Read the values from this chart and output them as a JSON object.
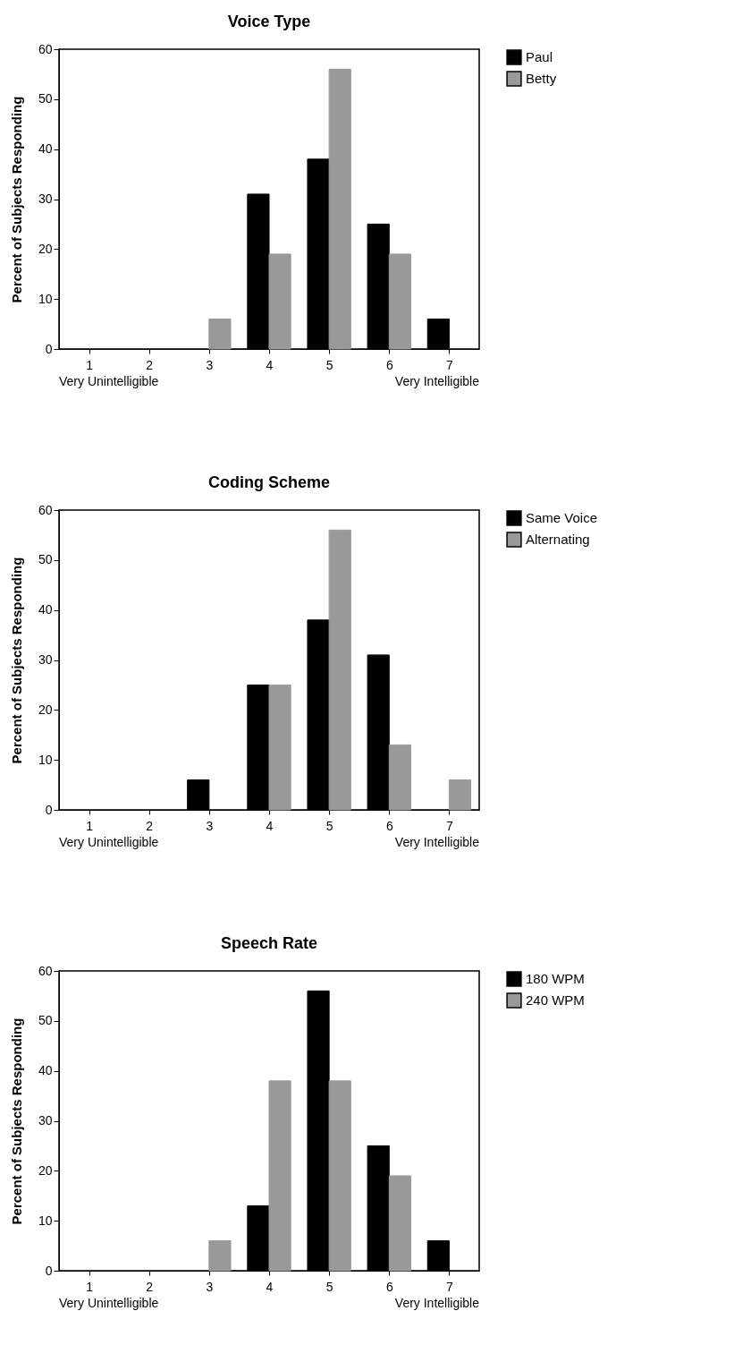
{
  "chart_data": [
    {
      "type": "bar",
      "title": "Voice Type",
      "ylabel": "Percent of Subjects Responding",
      "categories": [
        "1",
        "2",
        "3",
        "4",
        "5",
        "6",
        "7"
      ],
      "ylim": [
        0,
        60
      ],
      "yticks": [
        0,
        10,
        20,
        30,
        40,
        50,
        60
      ],
      "legend": "right",
      "annotations": [
        "Very Unintelligible",
        "Very Intelligible"
      ],
      "series": [
        {
          "name": "Paul",
          "color": "#000000",
          "values": [
            null,
            null,
            null,
            31,
            38,
            25,
            6
          ]
        },
        {
          "name": "Betty",
          "color": "#999999",
          "values": [
            null,
            null,
            6,
            19,
            56,
            19,
            null
          ]
        }
      ]
    },
    {
      "type": "bar",
      "title": "Coding Scheme",
      "ylabel": "Percent of Subjects Responding",
      "categories": [
        "1",
        "2",
        "3",
        "4",
        "5",
        "6",
        "7"
      ],
      "ylim": [
        0,
        60
      ],
      "yticks": [
        0,
        10,
        20,
        30,
        40,
        50,
        60
      ],
      "legend": "right",
      "annotations": [
        "Very Unintelligible",
        "Very Intelligible"
      ],
      "series": [
        {
          "name": "Same Voice",
          "color": "#000000",
          "values": [
            null,
            null,
            6,
            25,
            38,
            31,
            null
          ]
        },
        {
          "name": "Alternating",
          "color": "#999999",
          "values": [
            null,
            null,
            null,
            25,
            56,
            13,
            6
          ]
        }
      ]
    },
    {
      "type": "bar",
      "title": "Speech Rate",
      "ylabel": "Percent of Subjects Responding",
      "categories": [
        "1",
        "2",
        "3",
        "4",
        "5",
        "6",
        "7"
      ],
      "ylim": [
        0,
        60
      ],
      "yticks": [
        0,
        10,
        20,
        30,
        40,
        50,
        60
      ],
      "legend": "right",
      "annotations": [
        "Very Unintelligible",
        "Very Intelligible"
      ],
      "series": [
        {
          "name": "180 WPM",
          "color": "#000000",
          "values": [
            null,
            null,
            null,
            13,
            56,
            25,
            6
          ]
        },
        {
          "name": "240 WPM",
          "color": "#999999",
          "values": [
            null,
            null,
            6,
            38,
            38,
            19,
            null
          ]
        }
      ]
    }
  ]
}
